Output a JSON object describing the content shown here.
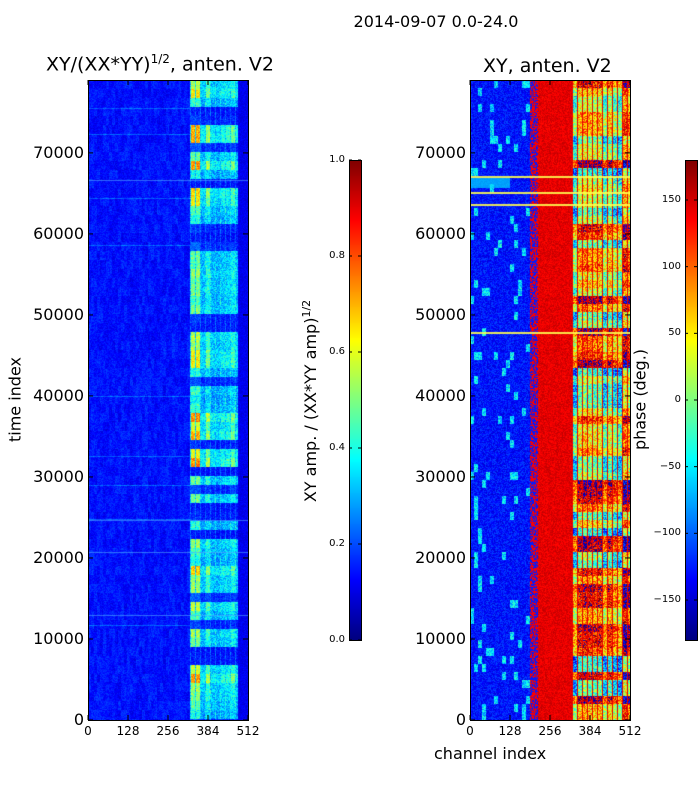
{
  "figure": {
    "suptitle": "2014-09-07 0.0-24.0"
  },
  "colors": {
    "jet_dark": "#00007f",
    "jet_blue": "#0000ff",
    "jet_cyan": "#00ffff",
    "jet_yellow": "#ffff00",
    "jet_red": "#ff0000",
    "jet_darkred": "#7f0000"
  },
  "chart_data": [
    {
      "type": "heatmap",
      "title_main": "XY/(XX*YY)",
      "title_sup": "1/2",
      "title_suffix": ", anten. V2",
      "xlabel": "",
      "ylabel": "time index",
      "xlim": [
        0,
        512
      ],
      "ylim": [
        0,
        79000
      ],
      "x_ticks": [
        0,
        128,
        256,
        384,
        512
      ],
      "x_tick_labels": [
        "0",
        "128",
        "256",
        "384",
        "512"
      ],
      "y_ticks": [
        0,
        10000,
        20000,
        30000,
        40000,
        50000,
        60000,
        70000
      ],
      "y_tick_labels": [
        "0",
        "10000",
        "20000",
        "30000",
        "40000",
        "50000",
        "60000",
        "70000"
      ],
      "colorbar": {
        "label_main": "XY amp. / (XX*YY amp)",
        "label_sup": "1/2",
        "range": [
          0.0,
          1.0
        ],
        "ticks": [
          0.0,
          0.2,
          0.4,
          0.6,
          0.8,
          1.0
        ],
        "tick_labels": [
          "0.0",
          "0.2",
          "0.4",
          "0.6",
          "0.8",
          "1.0"
        ]
      },
      "value_description": "mostly low amplitude (0.0-0.2) except bright striped band between channels ~325 and ~475"
    },
    {
      "type": "heatmap",
      "title": "XY, anten. V2",
      "xlabel": "channel index",
      "ylabel": "",
      "xlim": [
        0,
        512
      ],
      "ylim": [
        0,
        79000
      ],
      "x_ticks": [
        0,
        128,
        256,
        384,
        512
      ],
      "x_tick_labels": [
        "0",
        "128",
        "256",
        "384",
        "512"
      ],
      "y_ticks": [
        0,
        10000,
        20000,
        30000,
        40000,
        50000,
        60000,
        70000
      ],
      "y_tick_labels": [
        "0",
        "10000",
        "20000",
        "30000",
        "40000",
        "50000",
        "60000",
        "70000"
      ],
      "colorbar": {
        "label": "phase (deg.)",
        "range": [
          -180,
          180
        ],
        "ticks": [
          -150,
          -100,
          -50,
          0,
          50,
          100,
          150
        ],
        "tick_labels": [
          "−150",
          "−100",
          "−50",
          "0",
          "50",
          "100",
          "150"
        ]
      },
      "value_description": "phase near -150 for channels 0-200, near +150 for 200-320, mixed striped band 320-512"
    }
  ]
}
